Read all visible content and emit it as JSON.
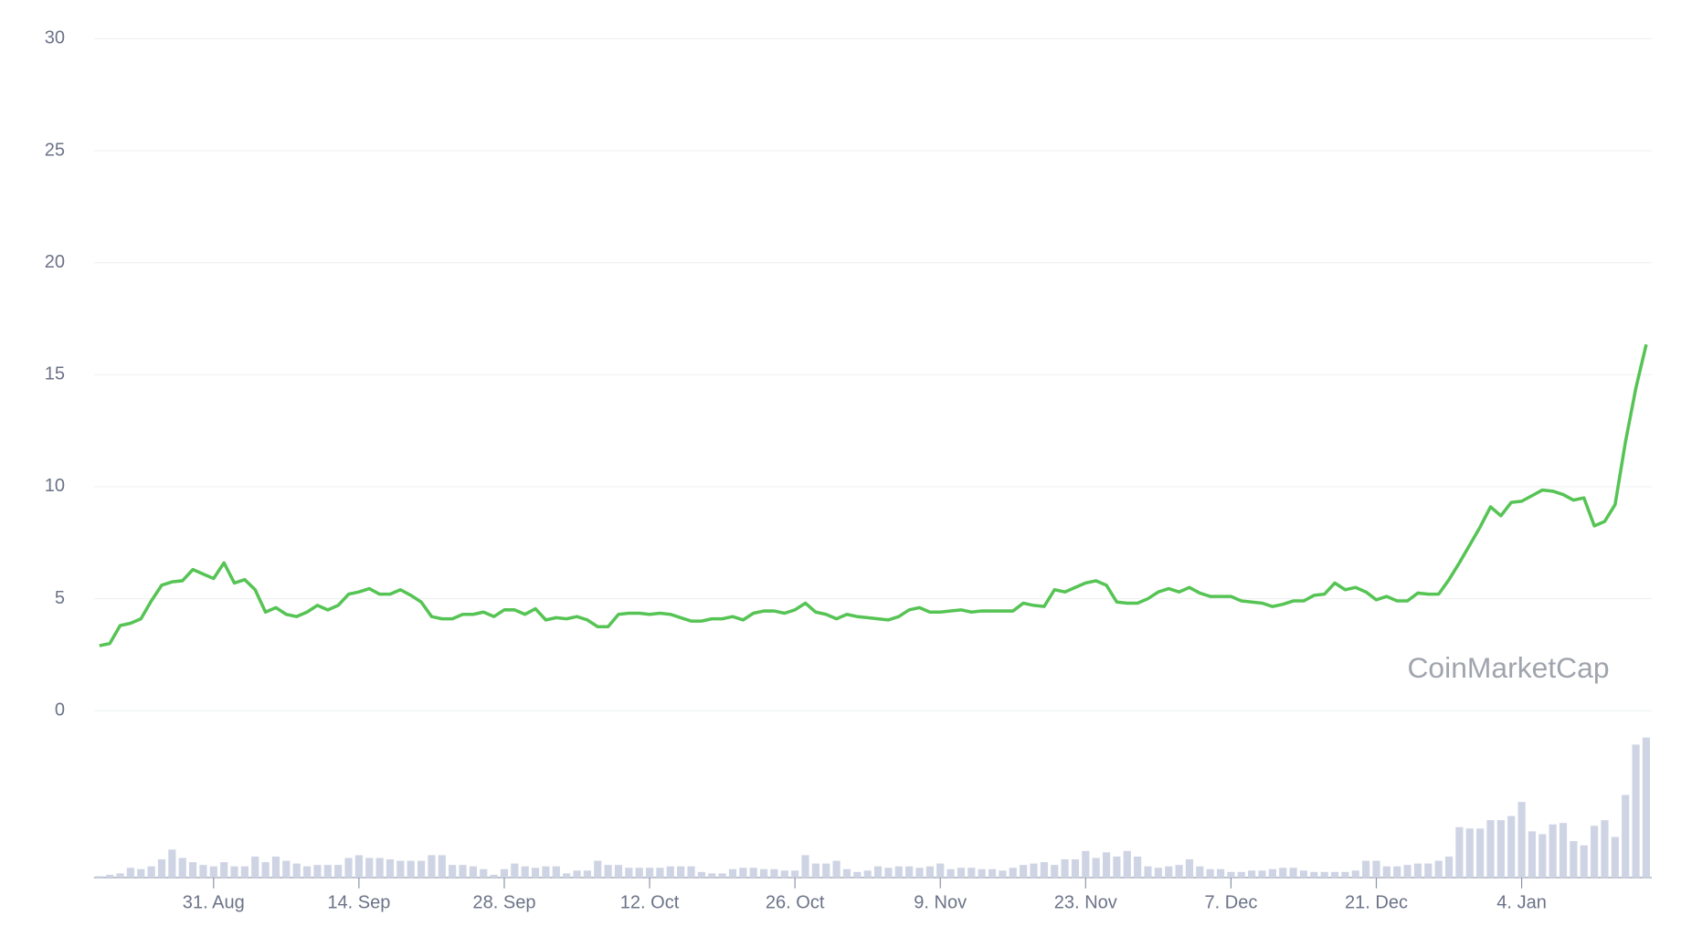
{
  "chart_data": {
    "type": "line",
    "watermark": "CoinMarketCap",
    "categories": [
      null,
      null,
      null,
      null,
      null,
      null,
      null,
      null,
      null,
      null,
      null,
      "31. Aug",
      null,
      null,
      null,
      null,
      null,
      null,
      null,
      null,
      null,
      null,
      null,
      null,
      null,
      "14. Sep",
      null,
      null,
      null,
      null,
      null,
      null,
      null,
      null,
      null,
      null,
      null,
      null,
      null,
      "28. Sep",
      null,
      null,
      null,
      null,
      null,
      null,
      null,
      null,
      null,
      null,
      null,
      null,
      null,
      "12. Oct",
      null,
      null,
      null,
      null,
      null,
      null,
      null,
      null,
      null,
      null,
      null,
      null,
      null,
      "26. Oct",
      null,
      null,
      null,
      null,
      null,
      null,
      null,
      null,
      null,
      null,
      null,
      null,
      null,
      "9. Nov",
      null,
      null,
      null,
      null,
      null,
      null,
      null,
      null,
      null,
      null,
      null,
      null,
      null,
      "23. Nov",
      null,
      null,
      null,
      null,
      null,
      null,
      null,
      null,
      null,
      null,
      null,
      null,
      null,
      "7. Dec",
      null,
      null,
      null,
      null,
      null,
      null,
      null,
      null,
      null,
      null,
      null,
      null,
      null,
      "21. Dec",
      null,
      null,
      null,
      null,
      null,
      null,
      null,
      null,
      null,
      null,
      null,
      null,
      null,
      "4. Jan",
      null,
      null,
      null,
      null,
      null,
      null,
      null,
      null,
      null,
      null,
      null,
      null
    ],
    "series": [
      {
        "color": "#56c454",
        "values": [
          2.9,
          3.0,
          3.8,
          3.9,
          4.1,
          4.9,
          5.6,
          5.75,
          5.8,
          6.3,
          6.1,
          5.9,
          6.6,
          5.7,
          5.85,
          5.4,
          4.4,
          4.6,
          4.3,
          4.2,
          4.4,
          4.7,
          4.5,
          4.7,
          5.2,
          5.3,
          5.45,
          5.2,
          5.2,
          5.4,
          5.15,
          4.85,
          4.2,
          4.1,
          4.1,
          4.3,
          4.3,
          4.4,
          4.2,
          4.5,
          4.5,
          4.3,
          4.55,
          4.05,
          4.15,
          4.1,
          4.2,
          4.05,
          3.75,
          3.75,
          4.3,
          4.35,
          4.35,
          4.3,
          4.35,
          4.3,
          4.15,
          4.0,
          4.0,
          4.1,
          4.1,
          4.2,
          4.05,
          4.35,
          4.45,
          4.45,
          4.35,
          4.5,
          4.8,
          4.4,
          4.3,
          4.1,
          4.3,
          4.2,
          4.15,
          4.1,
          4.05,
          4.2,
          4.5,
          4.6,
          4.4,
          4.4,
          4.45,
          4.5,
          4.4,
          4.45,
          4.45,
          4.45,
          4.45,
          4.8,
          4.7,
          4.65,
          5.4,
          5.3,
          5.5,
          5.7,
          5.8,
          5.6,
          4.85,
          4.8,
          4.8,
          5.0,
          5.3,
          5.45,
          5.3,
          5.5,
          5.25,
          5.1,
          5.1,
          5.1,
          4.9,
          4.85,
          4.8,
          4.65,
          4.75,
          4.9,
          4.9,
          5.15,
          5.2,
          5.7,
          5.4,
          5.5,
          5.3,
          4.95,
          5.1,
          4.9,
          4.9,
          5.25,
          5.2,
          5.2,
          5.85,
          6.6,
          7.4,
          8.2,
          9.1,
          8.7,
          9.3,
          9.35,
          9.6,
          9.85,
          9.8,
          9.65,
          9.4,
          9.5,
          8.25,
          8.45,
          9.2,
          12.0,
          14.4,
          16.35
        ]
      },
      {
        "color": "#cfd4e4",
        "axis": "y2",
        "values": [
          1,
          2,
          3,
          7,
          6,
          8,
          13,
          20,
          14,
          11,
          9,
          8,
          11,
          8,
          8,
          15,
          11,
          15,
          12,
          10,
          8,
          9,
          9,
          9,
          14,
          16,
          14,
          14,
          13,
          12,
          12,
          12,
          16,
          16,
          9,
          9,
          8,
          6,
          2,
          6,
          10,
          8,
          7,
          8,
          8,
          3,
          5,
          5,
          12,
          9,
          9,
          7,
          7,
          7,
          7,
          8,
          8,
          8,
          4,
          3,
          3,
          6,
          7,
          7,
          6,
          6,
          5,
          5,
          16,
          10,
          10,
          12,
          6,
          4,
          5,
          8,
          7,
          8,
          8,
          7,
          8,
          10,
          6,
          7,
          7,
          6,
          6,
          5,
          7,
          9,
          10,
          11,
          9,
          13,
          13,
          19,
          14,
          18,
          15,
          19,
          15,
          8,
          7,
          8,
          9,
          13,
          8,
          6,
          6,
          4,
          4,
          5,
          5,
          6,
          7,
          7,
          5,
          4,
          4,
          4,
          4,
          5,
          12,
          12,
          8,
          8,
          9,
          10,
          10,
          12,
          15,
          36,
          35,
          35,
          41,
          41,
          44,
          54,
          33,
          31,
          38,
          39,
          26,
          23,
          37,
          41,
          29,
          59,
          95,
          100
        ]
      }
    ],
    "ylim": [
      0,
      30
    ],
    "yticks": [
      0,
      5,
      10,
      15,
      20,
      25,
      30
    ],
    "y2lim": [
      0,
      100
    ],
    "grid": true
  }
}
